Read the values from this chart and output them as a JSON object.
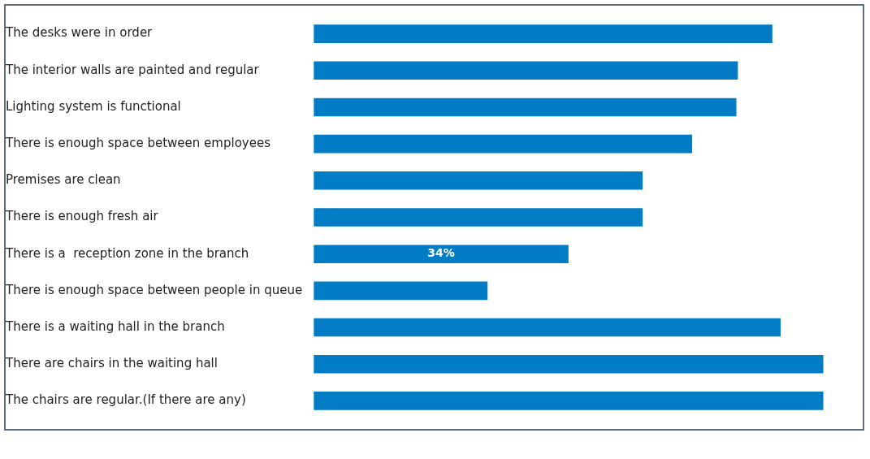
{
  "chart_data": {
    "type": "bar",
    "orientation": "horizontal",
    "categories": [
      "The desks were in order",
      "The interior walls are painted and regular",
      "Lighting system is functional",
      "There is enough space between employees",
      "Premises are clean",
      "There is enough fresh air",
      "There is a  reception zone in the branch",
      "There is enough space between people in queue",
      "There is a waiting hall in the branch",
      "There are chairs in the waiting hall",
      "The chairs are regular.(If there are any)"
    ],
    "values": [
      61.2,
      56.6,
      56.4,
      50.5,
      43.9,
      43.9,
      34,
      23.2,
      62.3,
      68,
      68
    ],
    "value_labels": [
      null,
      null,
      null,
      null,
      null,
      null,
      "34%",
      null,
      null,
      null,
      null
    ],
    "color": "#027cc4",
    "tick_labels": "y",
    "grid": false,
    "legend": false
  }
}
